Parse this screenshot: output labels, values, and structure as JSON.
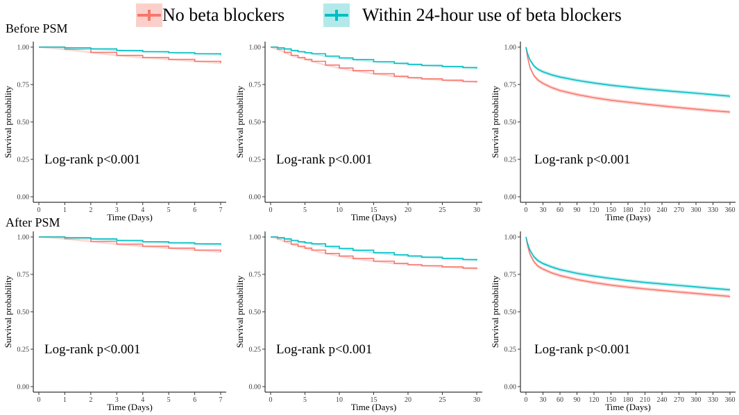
{
  "legend": {
    "items": [
      {
        "label": "No beta blockers",
        "color": "#F8766D",
        "fill": "#FBD0CB"
      },
      {
        "label": "Within 24-hour use of beta blockers",
        "color": "#00BFC4",
        "fill": "#B4E9EA"
      }
    ]
  },
  "sections": {
    "before": "Before PSM",
    "after": "After PSM"
  },
  "chart_data": [
    {
      "type": "line",
      "id": "before-7",
      "xlabel": "Time (Days)",
      "ylabel": "Survival probability",
      "xlim": [
        0,
        7
      ],
      "ylim": [
        0,
        1
      ],
      "xticks": [
        "0",
        "1",
        "2",
        "3",
        "4",
        "5",
        "6",
        "7"
      ],
      "yticks": [
        "0.00",
        "0.25",
        "0.50",
        "0.75",
        "1.00"
      ],
      "annotation": "Log-rank p<0.001",
      "series": [
        {
          "name": "No beta blockers",
          "x": [
            0,
            1,
            2,
            3,
            4,
            5,
            6,
            7
          ],
          "y": [
            1.0,
            0.985,
            0.965,
            0.945,
            0.93,
            0.918,
            0.905,
            0.893
          ]
        },
        {
          "name": "Within 24-hour use of beta blockers",
          "x": [
            0,
            1,
            2,
            3,
            4,
            5,
            6,
            7
          ],
          "y": [
            1.0,
            0.995,
            0.988,
            0.978,
            0.97,
            0.963,
            0.956,
            0.948
          ]
        }
      ]
    },
    {
      "type": "line",
      "id": "before-30",
      "xlabel": "Time (Days)",
      "ylabel": "Survival probability",
      "xlim": [
        0,
        30
      ],
      "ylim": [
        0,
        1
      ],
      "xticks": [
        "0",
        "5",
        "10",
        "15",
        "20",
        "25",
        "30"
      ],
      "yticks": [
        "0.00",
        "0.25",
        "0.50",
        "0.75",
        "1.00"
      ],
      "annotation": "Log-rank p<0.001",
      "series": [
        {
          "name": "No beta blockers",
          "x": [
            0,
            1,
            2,
            3,
            4,
            5,
            6,
            8,
            10,
            12,
            15,
            18,
            20,
            22,
            25,
            28,
            30
          ],
          "y": [
            1.0,
            0.985,
            0.965,
            0.945,
            0.93,
            0.918,
            0.905,
            0.88,
            0.86,
            0.843,
            0.822,
            0.805,
            0.796,
            0.788,
            0.779,
            0.771,
            0.765
          ]
        },
        {
          "name": "Within 24-hour use of beta blockers",
          "x": [
            0,
            1,
            2,
            3,
            4,
            5,
            6,
            8,
            10,
            12,
            15,
            18,
            20,
            22,
            25,
            28,
            30
          ],
          "y": [
            1.0,
            0.995,
            0.988,
            0.978,
            0.97,
            0.963,
            0.956,
            0.94,
            0.928,
            0.917,
            0.903,
            0.892,
            0.885,
            0.878,
            0.871,
            0.864,
            0.857
          ]
        }
      ]
    },
    {
      "type": "line",
      "id": "before-360",
      "xlabel": "Time (Days)",
      "ylabel": "Survival probability",
      "xlim": [
        0,
        360
      ],
      "ylim": [
        0,
        1
      ],
      "xticks": [
        "0",
        "30",
        "60",
        "90",
        "120",
        "150",
        "180",
        "210",
        "240",
        "270",
        "300",
        "330",
        "360"
      ],
      "yticks": [
        "0.00",
        "0.25",
        "0.50",
        "0.75",
        "1.00"
      ],
      "annotation": "Log-rank p<0.001",
      "series": [
        {
          "name": "No beta blockers",
          "x": [
            0,
            3,
            7,
            14,
            21,
            30,
            45,
            60,
            90,
            120,
            150,
            180,
            210,
            240,
            270,
            300,
            330,
            360
          ],
          "y": [
            1.0,
            0.93,
            0.865,
            0.81,
            0.78,
            0.758,
            0.73,
            0.71,
            0.683,
            0.662,
            0.645,
            0.632,
            0.619,
            0.607,
            0.596,
            0.585,
            0.575,
            0.566
          ]
        },
        {
          "name": "Within 24-hour use of beta blockers",
          "x": [
            0,
            3,
            7,
            14,
            21,
            30,
            45,
            60,
            90,
            120,
            150,
            180,
            210,
            240,
            270,
            300,
            330,
            360
          ],
          "y": [
            1.0,
            0.955,
            0.915,
            0.875,
            0.852,
            0.835,
            0.815,
            0.8,
            0.778,
            0.76,
            0.745,
            0.733,
            0.721,
            0.711,
            0.701,
            0.692,
            0.682,
            0.672
          ]
        }
      ]
    },
    {
      "type": "line",
      "id": "after-7",
      "xlabel": "Time (Days)",
      "ylabel": "Survival probability",
      "xlim": [
        0,
        7
      ],
      "ylim": [
        0,
        1
      ],
      "xticks": [
        "0",
        "1",
        "2",
        "3",
        "4",
        "5",
        "6",
        "7"
      ],
      "yticks": [
        "0.00",
        "0.25",
        "0.50",
        "0.75",
        "1.00"
      ],
      "annotation": "Log-rank p<0.001",
      "series": [
        {
          "name": "No beta blockers",
          "x": [
            0,
            1,
            2,
            3,
            4,
            5,
            6,
            7
          ],
          "y": [
            1.0,
            0.988,
            0.97,
            0.952,
            0.938,
            0.925,
            0.912,
            0.9
          ]
        },
        {
          "name": "Within 24-hour use of beta blockers",
          "x": [
            0,
            1,
            2,
            3,
            4,
            5,
            6,
            7
          ],
          "y": [
            1.0,
            0.995,
            0.987,
            0.977,
            0.968,
            0.961,
            0.954,
            0.947
          ]
        }
      ]
    },
    {
      "type": "line",
      "id": "after-30",
      "xlabel": "Time (Days)",
      "ylabel": "Survival probability",
      "xlim": [
        0,
        30
      ],
      "ylim": [
        0,
        1
      ],
      "xticks": [
        "0",
        "5",
        "10",
        "15",
        "20",
        "25",
        "30"
      ],
      "yticks": [
        "0.00",
        "0.25",
        "0.50",
        "0.75",
        "1.00"
      ],
      "annotation": "Log-rank p<0.001",
      "series": [
        {
          "name": "No beta blockers",
          "x": [
            0,
            1,
            2,
            3,
            4,
            5,
            6,
            8,
            10,
            12,
            15,
            18,
            20,
            22,
            25,
            28,
            30
          ],
          "y": [
            1.0,
            0.988,
            0.97,
            0.952,
            0.938,
            0.925,
            0.912,
            0.89,
            0.872,
            0.856,
            0.838,
            0.823,
            0.815,
            0.808,
            0.8,
            0.792,
            0.786
          ]
        },
        {
          "name": "Within 24-hour use of beta blockers",
          "x": [
            0,
            1,
            2,
            3,
            4,
            5,
            6,
            8,
            10,
            12,
            15,
            18,
            20,
            22,
            25,
            28,
            30
          ],
          "y": [
            1.0,
            0.995,
            0.987,
            0.977,
            0.968,
            0.961,
            0.954,
            0.937,
            0.923,
            0.911,
            0.895,
            0.881,
            0.873,
            0.865,
            0.857,
            0.849,
            0.843
          ]
        }
      ]
    },
    {
      "type": "line",
      "id": "after-360",
      "xlabel": "Time (Days)",
      "ylabel": "Survival probability",
      "xlim": [
        0,
        360
      ],
      "ylim": [
        0,
        1
      ],
      "xticks": [
        "0",
        "30",
        "60",
        "90",
        "120",
        "150",
        "180",
        "210",
        "240",
        "270",
        "300",
        "330",
        "360"
      ],
      "yticks": [
        "0.00",
        "0.25",
        "0.50",
        "0.75",
        "1.00"
      ],
      "annotation": "Log-rank p<0.001",
      "series": [
        {
          "name": "No beta blockers",
          "x": [
            0,
            3,
            7,
            14,
            21,
            30,
            45,
            60,
            90,
            120,
            150,
            180,
            210,
            240,
            270,
            300,
            330,
            360
          ],
          "y": [
            1.0,
            0.94,
            0.885,
            0.835,
            0.805,
            0.785,
            0.76,
            0.742,
            0.715,
            0.695,
            0.678,
            0.665,
            0.653,
            0.642,
            0.632,
            0.622,
            0.612,
            0.603
          ]
        },
        {
          "name": "Within 24-hour use of beta blockers",
          "x": [
            0,
            3,
            7,
            14,
            21,
            30,
            45,
            60,
            90,
            120,
            150,
            180,
            210,
            240,
            270,
            300,
            330,
            360
          ],
          "y": [
            1.0,
            0.955,
            0.912,
            0.868,
            0.842,
            0.822,
            0.8,
            0.782,
            0.757,
            0.738,
            0.722,
            0.708,
            0.696,
            0.686,
            0.676,
            0.666,
            0.656,
            0.647
          ]
        }
      ]
    }
  ]
}
